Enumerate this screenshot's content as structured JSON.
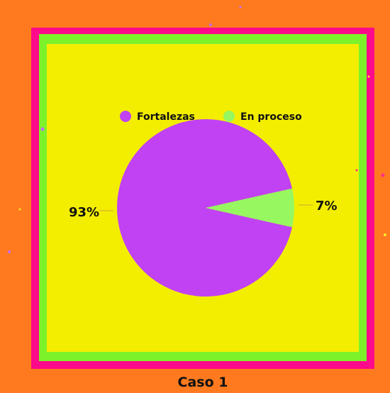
{
  "colors": {
    "outer_background": "#FF7A1F",
    "pink_frame": "#FF0A8A",
    "green_frame": "#7CF22A",
    "panel_background": "#F3EE00",
    "text": "#111111",
    "dot_purple": "#C06BFF",
    "dot_pink": "#FF2E88",
    "dot_yellow": "#F7EB2B"
  },
  "chart_data": {
    "type": "pie",
    "title": "",
    "legend_position": "top",
    "slices": [
      {
        "label": "Fortalezas",
        "value": 93,
        "value_label": "93%",
        "color": "#C142F2"
      },
      {
        "label": "En proceso",
        "value": 7,
        "value_label": "7%",
        "color": "#96F760"
      }
    ]
  },
  "caption": "Caso 1"
}
